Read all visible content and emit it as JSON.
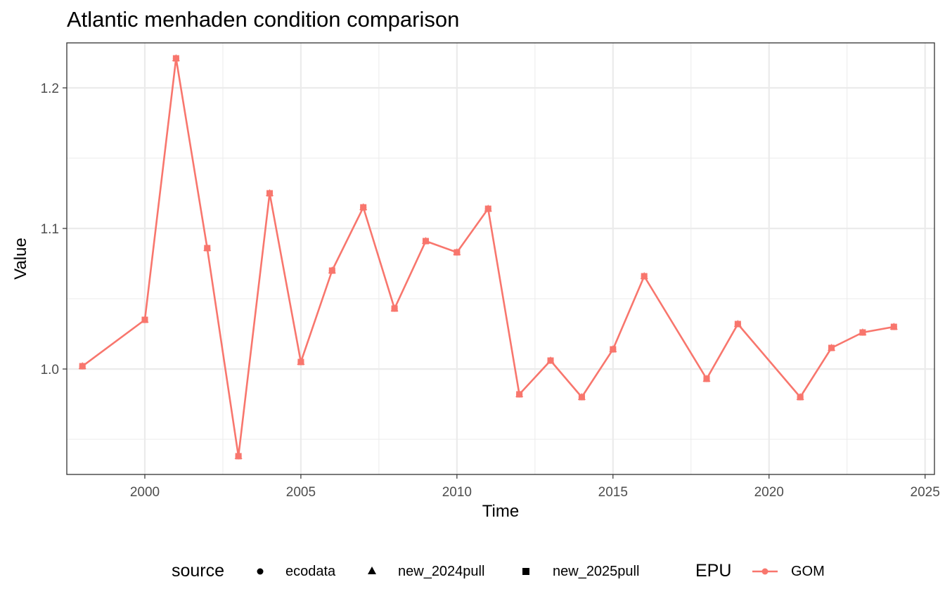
{
  "chart_data": {
    "type": "line",
    "title": "Atlantic menhaden condition comparison",
    "xlabel": "Time",
    "ylabel": "Value",
    "xlim": [
      1997.5,
      2025.3
    ],
    "ylim": [
      0.925,
      1.232
    ],
    "x_ticks": [
      2000,
      2005,
      2010,
      2015,
      2020,
      2025
    ],
    "y_ticks": [
      1.0,
      1.1,
      1.2
    ],
    "y_tick_labels": [
      "1.0",
      "1.1",
      "1.2"
    ],
    "grid": true,
    "legend_position": "bottom",
    "legend": {
      "source_title": "source",
      "source_items": [
        "ecodata",
        "new_2024pull",
        "new_2025pull"
      ],
      "epu_title": "EPU",
      "epu_items": [
        "GOM"
      ]
    },
    "series": [
      {
        "name": "GOM",
        "color": "#F8766D",
        "x": [
          1998,
          2000,
          2001,
          2002,
          2003,
          2004,
          2005,
          2006,
          2007,
          2008,
          2009,
          2010,
          2011,
          2012,
          2013,
          2014,
          2015,
          2016,
          2018,
          2019,
          2021,
          2022,
          2023,
          2024
        ],
        "y": [
          1.002,
          1.035,
          1.221,
          1.086,
          0.938,
          1.125,
          1.005,
          1.07,
          1.115,
          1.043,
          1.091,
          1.083,
          1.114,
          0.982,
          1.006,
          0.98,
          1.014,
          1.066,
          0.993,
          1.032,
          0.98,
          1.015,
          1.026,
          1.03
        ]
      }
    ]
  }
}
